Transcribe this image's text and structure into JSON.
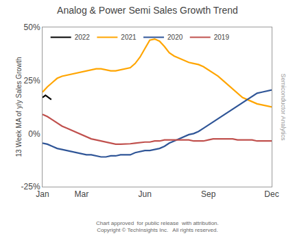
{
  "chart_data": {
    "type": "line",
    "title": "Analog & Power Semi Sales Growth Trend",
    "ylabel": "13 Week MA of y/y Sales Growth",
    "xlim": [
      0,
      47
    ],
    "xticks": [
      {
        "value": 0,
        "label": "Jan"
      },
      {
        "value": 8,
        "label": "Mar"
      },
      {
        "value": 21,
        "label": "Jun"
      },
      {
        "value": 34,
        "label": "Sep"
      },
      {
        "value": 47,
        "label": "Dec"
      }
    ],
    "ylim": [
      -25,
      50
    ],
    "yticks": [
      {
        "value": -25,
        "label": "-25%"
      },
      {
        "value": 0,
        "label": "0%"
      },
      {
        "value": 25,
        "label": "25%"
      },
      {
        "value": 50,
        "label": "50%"
      }
    ],
    "grid": false,
    "legend": "upper left",
    "annotations": [
      "Chart approved  for public release  with attribution.\nCopyright © TechInsights Inc.   All rights reserved.",
      "Semiconductor Analytics"
    ],
    "series": [
      {
        "name": "2022",
        "color": "#000000",
        "x": [
          0,
          0.3,
          0.6,
          0.9,
          1.2,
          1.5,
          1.8
        ],
        "values": [
          17,
          17.5,
          18,
          17.5,
          17,
          16.5,
          16
        ]
      },
      {
        "name": "2021",
        "color": "#FFA500",
        "x": [
          0,
          1,
          2,
          3,
          4,
          5,
          6,
          7,
          8,
          9,
          10,
          11,
          12,
          13,
          14,
          15,
          16,
          17,
          18,
          19,
          20,
          21,
          22,
          23,
          24,
          25,
          26,
          27,
          28,
          29,
          30,
          31,
          32,
          33,
          34,
          35,
          36,
          37,
          38,
          39,
          40,
          41,
          42,
          43,
          44,
          45,
          46,
          47
        ],
        "values": [
          19.5,
          22,
          24,
          26,
          27,
          27.5,
          28,
          28.5,
          29,
          29.5,
          30,
          30.5,
          30.5,
          30,
          29.5,
          29.5,
          30,
          30.5,
          31,
          33,
          36,
          40,
          44,
          44.5,
          43.5,
          41,
          38,
          36.5,
          35.5,
          34.5,
          33.5,
          33,
          32.5,
          31.5,
          30,
          28.5,
          27,
          25,
          23,
          21,
          19,
          17,
          16,
          15,
          14,
          13.5,
          13,
          12.5
        ]
      },
      {
        "name": "2020",
        "color": "#2F5597",
        "x": [
          0,
          1,
          2,
          3,
          4,
          5,
          6,
          7,
          8,
          9,
          10,
          11,
          12,
          13,
          14,
          15,
          16,
          17,
          18,
          19,
          20,
          21,
          22,
          23,
          24,
          25,
          26,
          27,
          28,
          29,
          30,
          31,
          32,
          33,
          34,
          35,
          36,
          37,
          38,
          39,
          40,
          41,
          42,
          43,
          44,
          45,
          46,
          47
        ],
        "values": [
          -4.5,
          -5,
          -6,
          -7,
          -7.5,
          -8,
          -8.5,
          -9,
          -9.5,
          -10,
          -10,
          -10.5,
          -11,
          -11,
          -10.5,
          -10.5,
          -10,
          -10,
          -10,
          -9,
          -8.5,
          -8,
          -8,
          -7.5,
          -7,
          -6,
          -4.5,
          -3.5,
          -2.5,
          -1.5,
          -0.5,
          0,
          1,
          2.5,
          4,
          5.5,
          7,
          8.5,
          10,
          11.5,
          13,
          14.5,
          16,
          17.5,
          19,
          19.5,
          20,
          20.5
        ]
      },
      {
        "name": "2019",
        "color": "#C0504D",
        "x": [
          0,
          1,
          2,
          3,
          4,
          5,
          6,
          7,
          8,
          9,
          10,
          11,
          12,
          13,
          14,
          15,
          16,
          17,
          18,
          19,
          20,
          21,
          22,
          23,
          24,
          25,
          26,
          27,
          28,
          29,
          30,
          31,
          32,
          33,
          34,
          35,
          36,
          37,
          38,
          39,
          40,
          41,
          42,
          43,
          44,
          45,
          46,
          47
        ],
        "values": [
          9,
          8,
          6.5,
          5,
          3.5,
          2.5,
          1.5,
          0.5,
          -0.5,
          -1.5,
          -2.5,
          -3,
          -3.5,
          -4,
          -4.5,
          -5,
          -5,
          -5,
          -4.8,
          -4.5,
          -4.2,
          -4,
          -4,
          -3.5,
          -3.5,
          -3,
          -3,
          -3,
          -3,
          -3,
          -3,
          -3.5,
          -3.5,
          -3.5,
          -3,
          -2.5,
          -2.5,
          -2.5,
          -2.5,
          -2.5,
          -3,
          -3,
          -3,
          -3,
          -3.5,
          -3.5,
          -3.5,
          -3.5
        ]
      }
    ]
  }
}
